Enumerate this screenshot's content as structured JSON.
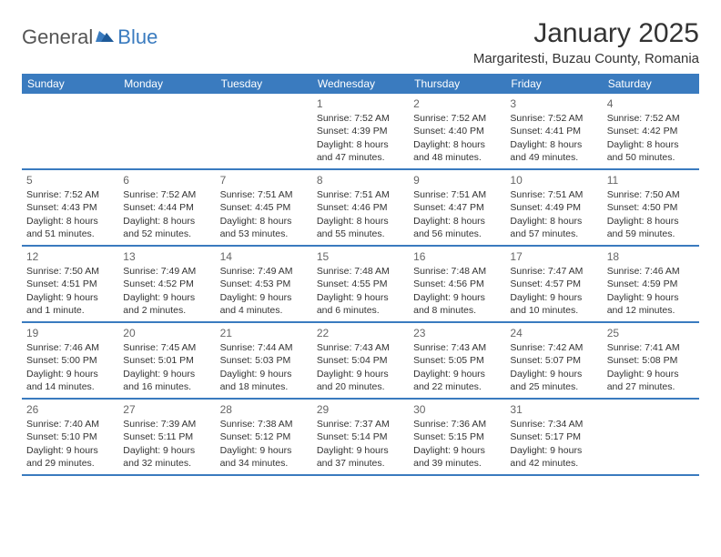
{
  "logo": {
    "general": "General",
    "blue": "Blue"
  },
  "title": "January 2025",
  "location": "Margaritesti, Buzau County, Romania",
  "colors": {
    "header_bg": "#3a7bbf",
    "header_text": "#ffffff",
    "border": "#3a7bbf",
    "text": "#333333",
    "daynum": "#666666",
    "logo_gray": "#555555",
    "logo_blue": "#3a7bbf",
    "page_bg": "#ffffff"
  },
  "weekdays": [
    "Sunday",
    "Monday",
    "Tuesday",
    "Wednesday",
    "Thursday",
    "Friday",
    "Saturday"
  ],
  "weeks": [
    [
      null,
      null,
      null,
      {
        "n": "1",
        "sr": "7:52 AM",
        "ss": "4:39 PM",
        "dl": "8 hours and 47 minutes."
      },
      {
        "n": "2",
        "sr": "7:52 AM",
        "ss": "4:40 PM",
        "dl": "8 hours and 48 minutes."
      },
      {
        "n": "3",
        "sr": "7:52 AM",
        "ss": "4:41 PM",
        "dl": "8 hours and 49 minutes."
      },
      {
        "n": "4",
        "sr": "7:52 AM",
        "ss": "4:42 PM",
        "dl": "8 hours and 50 minutes."
      }
    ],
    [
      {
        "n": "5",
        "sr": "7:52 AM",
        "ss": "4:43 PM",
        "dl": "8 hours and 51 minutes."
      },
      {
        "n": "6",
        "sr": "7:52 AM",
        "ss": "4:44 PM",
        "dl": "8 hours and 52 minutes."
      },
      {
        "n": "7",
        "sr": "7:51 AM",
        "ss": "4:45 PM",
        "dl": "8 hours and 53 minutes."
      },
      {
        "n": "8",
        "sr": "7:51 AM",
        "ss": "4:46 PM",
        "dl": "8 hours and 55 minutes."
      },
      {
        "n": "9",
        "sr": "7:51 AM",
        "ss": "4:47 PM",
        "dl": "8 hours and 56 minutes."
      },
      {
        "n": "10",
        "sr": "7:51 AM",
        "ss": "4:49 PM",
        "dl": "8 hours and 57 minutes."
      },
      {
        "n": "11",
        "sr": "7:50 AM",
        "ss": "4:50 PM",
        "dl": "8 hours and 59 minutes."
      }
    ],
    [
      {
        "n": "12",
        "sr": "7:50 AM",
        "ss": "4:51 PM",
        "dl": "9 hours and 1 minute."
      },
      {
        "n": "13",
        "sr": "7:49 AM",
        "ss": "4:52 PM",
        "dl": "9 hours and 2 minutes."
      },
      {
        "n": "14",
        "sr": "7:49 AM",
        "ss": "4:53 PM",
        "dl": "9 hours and 4 minutes."
      },
      {
        "n": "15",
        "sr": "7:48 AM",
        "ss": "4:55 PM",
        "dl": "9 hours and 6 minutes."
      },
      {
        "n": "16",
        "sr": "7:48 AM",
        "ss": "4:56 PM",
        "dl": "9 hours and 8 minutes."
      },
      {
        "n": "17",
        "sr": "7:47 AM",
        "ss": "4:57 PM",
        "dl": "9 hours and 10 minutes."
      },
      {
        "n": "18",
        "sr": "7:46 AM",
        "ss": "4:59 PM",
        "dl": "9 hours and 12 minutes."
      }
    ],
    [
      {
        "n": "19",
        "sr": "7:46 AM",
        "ss": "5:00 PM",
        "dl": "9 hours and 14 minutes."
      },
      {
        "n": "20",
        "sr": "7:45 AM",
        "ss": "5:01 PM",
        "dl": "9 hours and 16 minutes."
      },
      {
        "n": "21",
        "sr": "7:44 AM",
        "ss": "5:03 PM",
        "dl": "9 hours and 18 minutes."
      },
      {
        "n": "22",
        "sr": "7:43 AM",
        "ss": "5:04 PM",
        "dl": "9 hours and 20 minutes."
      },
      {
        "n": "23",
        "sr": "7:43 AM",
        "ss": "5:05 PM",
        "dl": "9 hours and 22 minutes."
      },
      {
        "n": "24",
        "sr": "7:42 AM",
        "ss": "5:07 PM",
        "dl": "9 hours and 25 minutes."
      },
      {
        "n": "25",
        "sr": "7:41 AM",
        "ss": "5:08 PM",
        "dl": "9 hours and 27 minutes."
      }
    ],
    [
      {
        "n": "26",
        "sr": "7:40 AM",
        "ss": "5:10 PM",
        "dl": "9 hours and 29 minutes."
      },
      {
        "n": "27",
        "sr": "7:39 AM",
        "ss": "5:11 PM",
        "dl": "9 hours and 32 minutes."
      },
      {
        "n": "28",
        "sr": "7:38 AM",
        "ss": "5:12 PM",
        "dl": "9 hours and 34 minutes."
      },
      {
        "n": "29",
        "sr": "7:37 AM",
        "ss": "5:14 PM",
        "dl": "9 hours and 37 minutes."
      },
      {
        "n": "30",
        "sr": "7:36 AM",
        "ss": "5:15 PM",
        "dl": "9 hours and 39 minutes."
      },
      {
        "n": "31",
        "sr": "7:34 AM",
        "ss": "5:17 PM",
        "dl": "9 hours and 42 minutes."
      },
      null
    ]
  ],
  "labels": {
    "sunrise": "Sunrise:",
    "sunset": "Sunset:",
    "daylight": "Daylight:"
  }
}
